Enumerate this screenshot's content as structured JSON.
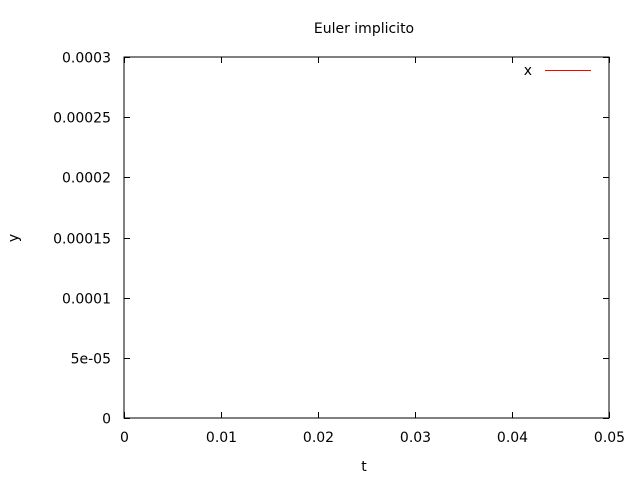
{
  "chart_data": {
    "type": "line",
    "title": "Euler implicito",
    "xlabel": "t",
    "ylabel": "y",
    "xlim": [
      0,
      0.05
    ],
    "ylim": [
      0,
      0.0003
    ],
    "xticks": [
      {
        "value": 0,
        "label": "0"
      },
      {
        "value": 0.01,
        "label": "0.01"
      },
      {
        "value": 0.02,
        "label": "0.02"
      },
      {
        "value": 0.03,
        "label": "0.03"
      },
      {
        "value": 0.04,
        "label": "0.04"
      },
      {
        "value": 0.05,
        "label": "0.05"
      }
    ],
    "yticks": [
      {
        "value": 0,
        "label": "0"
      },
      {
        "value": 5e-05,
        "label": "5e-05"
      },
      {
        "value": 0.0001,
        "label": "0.0001"
      },
      {
        "value": 0.00015,
        "label": "0.00015"
      },
      {
        "value": 0.0002,
        "label": "0.0002"
      },
      {
        "value": 0.00025,
        "label": "0.00025"
      },
      {
        "value": 0.0003,
        "label": "0.0003"
      }
    ],
    "grid": false,
    "legend_position": "top-right",
    "series": [
      {
        "name": "x",
        "color": "#ff0000",
        "x": [],
        "y": []
      }
    ]
  }
}
